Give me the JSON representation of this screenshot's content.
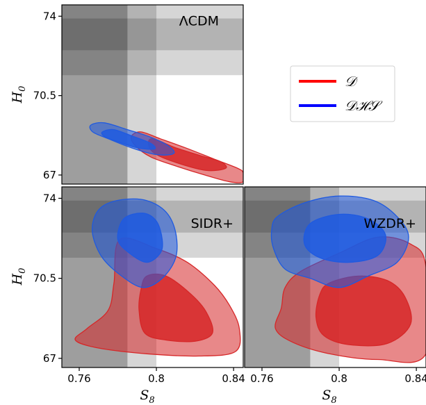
{
  "chart_data": [
    {
      "type": "contour",
      "panel": "top-left",
      "label": "ΛCDM",
      "ylabel": "H_0",
      "xlim": [
        0.751,
        0.845
      ],
      "ylim": [
        66.6,
        74.5
      ],
      "yticks": [
        {
          "v": 67,
          "t": "67"
        },
        {
          "v": 70.5,
          "t": "70.5"
        },
        {
          "v": 74,
          "t": "74"
        }
      ],
      "series": [
        {
          "name": "𝒟",
          "color": "#d62728",
          "levels": [
            {
              "conf": "95%",
              "points": [
                [
                  0.792,
                  68.9
                ],
                [
                  0.802,
                  68.6
                ],
                [
                  0.815,
                  68.2
                ],
                [
                  0.83,
                  67.7
                ],
                [
                  0.842,
                  67.3
                ],
                [
                  0.845,
                  67.1
                ],
                [
                  0.845,
                  66.7
                ],
                [
                  0.838,
                  66.7
                ],
                [
                  0.825,
                  67.0
                ],
                [
                  0.81,
                  67.4
                ],
                [
                  0.797,
                  67.8
                ],
                [
                  0.789,
                  68.3
                ],
                [
                  0.787,
                  68.7
                ]
              ]
            },
            {
              "conf": "68%",
              "points": [
                [
                  0.798,
                  68.6
                ],
                [
                  0.81,
                  68.2
                ],
                [
                  0.823,
                  67.85
                ],
                [
                  0.833,
                  67.6
                ],
                [
                  0.836,
                  67.3
                ],
                [
                  0.826,
                  67.2
                ],
                [
                  0.812,
                  67.5
                ],
                [
                  0.8,
                  67.9
                ],
                [
                  0.796,
                  68.3
                ]
              ]
            }
          ]
        },
        {
          "name": "𝒟ℋ𝒮",
          "color": "#1f5ae0",
          "levels": [
            {
              "conf": "95%",
              "points": [
                [
                  0.766,
                  69.2
                ],
                [
                  0.773,
                  69.3
                ],
                [
                  0.785,
                  69.0
                ],
                [
                  0.796,
                  68.7
                ],
                [
                  0.806,
                  68.3
                ],
                [
                  0.809,
                  67.95
                ],
                [
                  0.8,
                  67.9
                ],
                [
                  0.787,
                  68.2
                ],
                [
                  0.775,
                  68.6
                ],
                [
                  0.767,
                  68.9
                ]
              ]
            },
            {
              "conf": "68%",
              "points": [
                [
                  0.772,
                  68.9
                ],
                [
                  0.778,
                  69.0
                ],
                [
                  0.788,
                  68.7
                ],
                [
                  0.797,
                  68.4
                ],
                [
                  0.799,
                  68.15
                ],
                [
                  0.79,
                  68.2
                ],
                [
                  0.779,
                  68.5
                ],
                [
                  0.773,
                  68.7
                ]
              ]
            }
          ]
        }
      ]
    },
    {
      "type": "contour",
      "panel": "bottom-left",
      "label": "SIDR+",
      "xlabel": "S_8",
      "ylabel": "H_0",
      "xlim": [
        0.751,
        0.845
      ],
      "ylim": [
        66.6,
        74.5
      ],
      "xticks": [
        {
          "v": 0.76,
          "t": "0.76"
        },
        {
          "v": 0.8,
          "t": "0.8"
        },
        {
          "v": 0.84,
          "t": "0.84"
        }
      ],
      "yticks": [
        {
          "v": 67,
          "t": "67"
        },
        {
          "v": 70.5,
          "t": "70.5"
        },
        {
          "v": 74,
          "t": "74"
        }
      ],
      "series": [
        {
          "name": "𝒟",
          "color": "#d62728",
          "levels": [
            {
              "conf": "95%",
              "points": [
                [
                  0.781,
                  72.2
                ],
                [
                  0.8,
                  71.8
                ],
                [
                  0.816,
                  71.2
                ],
                [
                  0.83,
                  70.2
                ],
                [
                  0.838,
                  69.3
                ],
                [
                  0.843,
                  68.3
                ],
                [
                  0.841,
                  67.3
                ],
                [
                  0.822,
                  67.1
                ],
                [
                  0.795,
                  67.2
                ],
                [
                  0.77,
                  67.45
                ],
                [
                  0.758,
                  67.8
                ],
                [
                  0.764,
                  68.3
                ],
                [
                  0.775,
                  69.1
                ],
                [
                  0.778,
                  70.3
                ]
              ]
            },
            {
              "conf": "68%",
              "points": [
                [
                  0.795,
                  70.6
                ],
                [
                  0.805,
                  70.6
                ],
                [
                  0.818,
                  69.8
                ],
                [
                  0.826,
                  69.0
                ],
                [
                  0.829,
                  68.1
                ],
                [
                  0.82,
                  67.75
                ],
                [
                  0.805,
                  67.8
                ],
                [
                  0.794,
                  68.1
                ],
                [
                  0.791,
                  69.1
                ],
                [
                  0.792,
                  70.0
                ]
              ]
            }
          ]
        },
        {
          "name": "𝒟ℋ𝒮",
          "color": "#1f5ae0",
          "levels": [
            {
              "conf": "95%",
              "points": [
                [
                  0.773,
                  73.7
                ],
                [
                  0.783,
                  73.95
                ],
                [
                  0.795,
                  73.9
                ],
                [
                  0.805,
                  73.4
                ],
                [
                  0.81,
                  72.5
                ],
                [
                  0.81,
                  71.4
                ],
                [
                  0.803,
                  70.5
                ],
                [
                  0.793,
                  70.1
                ],
                [
                  0.782,
                  70.6
                ],
                [
                  0.772,
                  71.4
                ],
                [
                  0.767,
                  72.4
                ],
                [
                  0.768,
                  73.2
                ]
              ]
            },
            {
              "conf": "68%",
              "points": [
                [
                  0.783,
                  73.1
                ],
                [
                  0.793,
                  73.35
                ],
                [
                  0.8,
                  73.0
                ],
                [
                  0.803,
                  72.2
                ],
                [
                  0.802,
                  71.6
                ],
                [
                  0.795,
                  71.2
                ],
                [
                  0.786,
                  71.6
                ],
                [
                  0.78,
                  72.2
                ]
              ]
            }
          ]
        }
      ]
    },
    {
      "type": "contour",
      "panel": "bottom-right",
      "label": "WZDR+",
      "xlabel": "S_8",
      "xlim": [
        0.751,
        0.845
      ],
      "ylim": [
        66.6,
        74.5
      ],
      "xticks": [
        {
          "v": 0.76,
          "t": "0.76"
        },
        {
          "v": 0.8,
          "t": "0.8"
        },
        {
          "v": 0.84,
          "t": "0.84"
        }
      ],
      "series": [
        {
          "name": "𝒟",
          "color": "#d62728",
          "levels": [
            {
              "conf": "95%",
              "points": [
                [
                  0.78,
                  70.8
                ],
                [
                  0.8,
                  71.6
                ],
                [
                  0.82,
                  72.3
                ],
                [
                  0.837,
                  72.0
                ],
                [
                  0.845,
                  71.0
                ],
                [
                  0.845,
                  67.2
                ],
                [
                  0.82,
                  66.95
                ],
                [
                  0.795,
                  67.2
                ],
                [
                  0.776,
                  67.7
                ],
                [
                  0.767,
                  68.3
                ],
                [
                  0.77,
                  69.2
                ],
                [
                  0.772,
                  70.1
                ]
              ]
            },
            {
              "conf": "68%",
              "points": [
                [
                  0.795,
                  70.3
                ],
                [
                  0.81,
                  70.6
                ],
                [
                  0.825,
                  70.4
                ],
                [
                  0.834,
                  69.7
                ],
                [
                  0.837,
                  68.5
                ],
                [
                  0.825,
                  67.65
                ],
                [
                  0.805,
                  67.6
                ],
                [
                  0.792,
                  68.0
                ],
                [
                  0.788,
                  68.8
                ],
                [
                  0.79,
                  69.8
                ]
              ]
            }
          ]
        },
        {
          "name": "𝒟ℋ𝒮",
          "color": "#1f5ae0",
          "levels": [
            {
              "conf": "95%",
              "points": [
                [
                  0.768,
                  73.2
                ],
                [
                  0.782,
                  73.8
                ],
                [
                  0.8,
                  74.1
                ],
                [
                  0.818,
                  73.9
                ],
                [
                  0.83,
                  73.2
                ],
                [
                  0.836,
                  72.3
                ],
                [
                  0.83,
                  71.2
                ],
                [
                  0.815,
                  70.6
                ],
                [
                  0.8,
                  70.1
                ],
                [
                  0.785,
                  70.5
                ],
                [
                  0.772,
                  70.9
                ],
                [
                  0.766,
                  71.8
                ],
                [
                  0.765,
                  72.6
                ]
              ]
            },
            {
              "conf": "68%",
              "points": [
                [
                  0.785,
                  72.9
                ],
                [
                  0.8,
                  73.3
                ],
                [
                  0.815,
                  73.1
                ],
                [
                  0.824,
                  72.4
                ],
                [
                  0.82,
                  71.5
                ],
                [
                  0.805,
                  71.2
                ],
                [
                  0.79,
                  71.4
                ],
                [
                  0.782,
                  72.0
                ]
              ]
            }
          ]
        }
      ]
    }
  ],
  "bands": {
    "s8_dark": [
      0.751,
      0.785
    ],
    "s8_light": [
      0.785,
      0.8
    ],
    "h0_dark": [
      72.5,
      73.9
    ],
    "h0_light": [
      71.4,
      74.5
    ]
  },
  "legend": {
    "position": "right-middle",
    "items": [
      {
        "label": "𝒟",
        "color": "#ff0000"
      },
      {
        "label": "𝒟ℋ𝒮",
        "color": "#0000ff"
      }
    ]
  },
  "axes_titles": {
    "x": "S8",
    "y": "H0"
  }
}
